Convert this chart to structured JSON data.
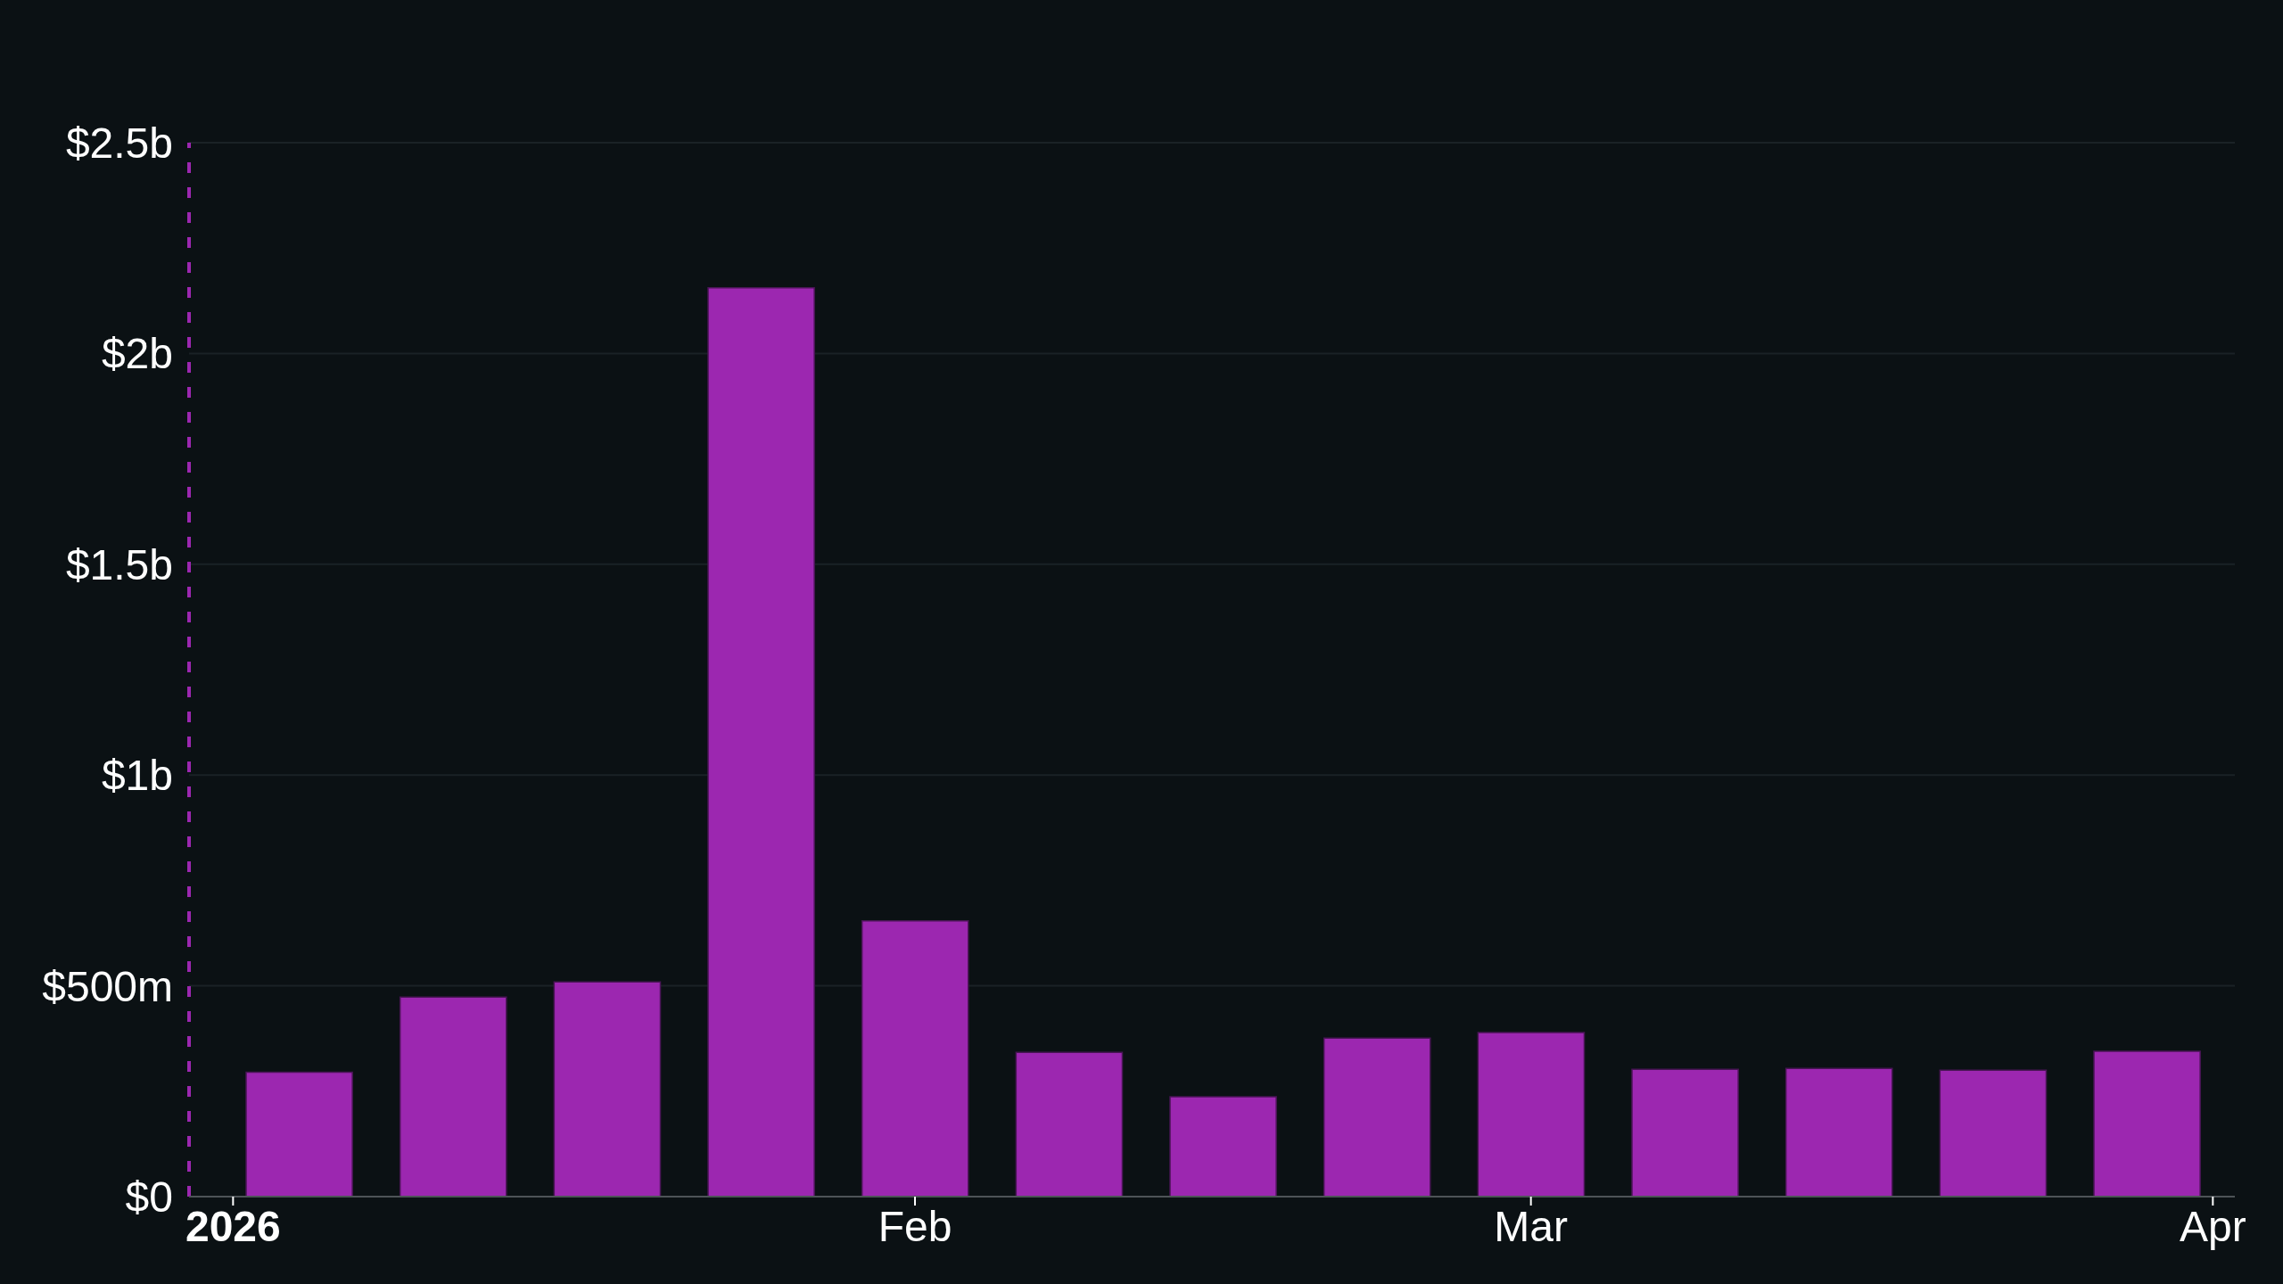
{
  "chart_data": {
    "type": "bar",
    "x": [
      "2026-01-04",
      "2026-01-11",
      "2026-01-18",
      "2026-01-25",
      "2026-02-01",
      "2026-02-08",
      "2026-02-15",
      "2026-02-22",
      "2026-03-01",
      "2026-03-08",
      "2026-03-15",
      "2026-03-22",
      "2026-03-29"
    ],
    "values": [
      295000000,
      473000000,
      509000000,
      2156000000,
      654000000,
      342000000,
      237000000,
      376000000,
      389000000,
      302000000,
      304000000,
      300000000,
      345000000
    ],
    "color": "#9c27b0",
    "xlim": [
      "2025-12-30",
      "2026-04-02"
    ],
    "xticks": [
      {
        "value": "2026-01-01",
        "label": "2026"
      },
      {
        "value": "2026-02-01",
        "label": "Feb"
      },
      {
        "value": "2026-03-01",
        "label": "Mar"
      },
      {
        "value": "2026-04-01",
        "label": "Apr"
      }
    ],
    "ylim": [
      0,
      2500000000
    ],
    "yticks": [
      {
        "value": 0,
        "label": "$0"
      },
      {
        "value": 500000000,
        "label": "$500m"
      },
      {
        "value": 1000000000,
        "label": "$1b"
      },
      {
        "value": 1500000000,
        "label": "$1.5b"
      },
      {
        "value": 2000000000,
        "label": "$2b"
      },
      {
        "value": 2500000000,
        "label": "$2.5b"
      }
    ],
    "grid": "y",
    "ref_lines": [
      {
        "axis": "x",
        "value": "2025-12-30",
        "color": "#9c27b0",
        "line_style": "dashed"
      }
    ]
  }
}
